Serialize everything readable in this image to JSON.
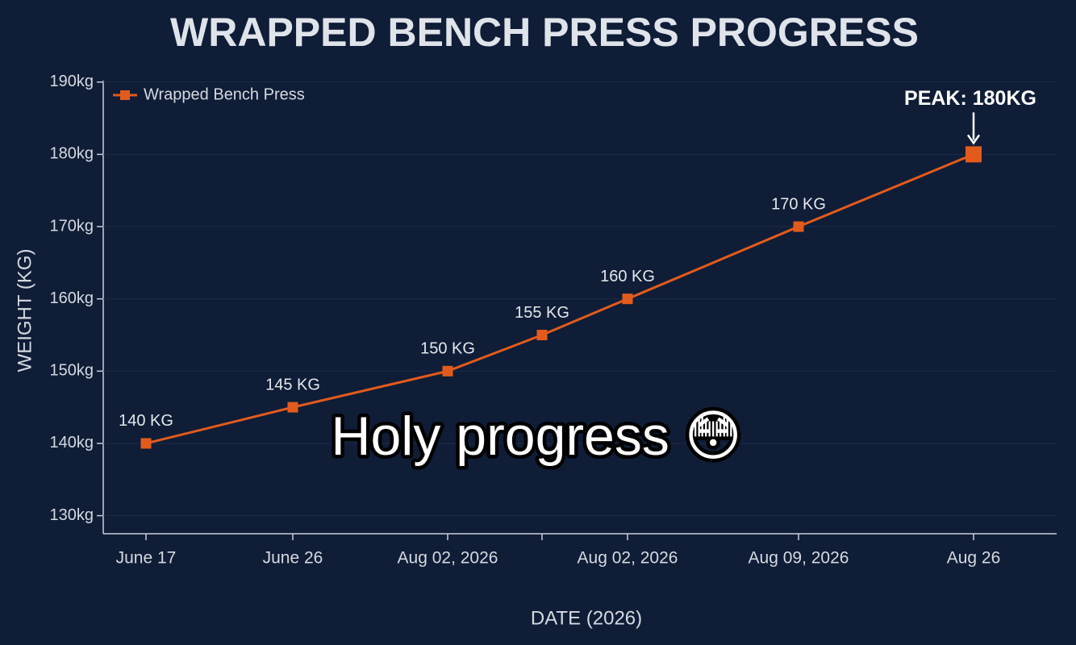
{
  "chart_data": {
    "type": "line",
    "title": "WRAPPED BENCH PRESS PROGRESS",
    "x_label": "DATE (2026)",
    "y_label": "WEIGHT (KG)",
    "categories": [
      "June 17",
      "June 26",
      "Aug 02, 2026",
      null,
      "Aug 02, 2026",
      "Aug 09, 2026",
      "Aug 26"
    ],
    "series": [
      {
        "name": "Wrapped Bench Press",
        "color": "#e35b1c",
        "values": [
          140,
          145,
          150,
          155,
          160,
          170,
          180
        ],
        "value_labels": [
          "140 KG",
          "145 KG",
          "150 KG",
          "155 KG",
          "160 KG",
          "170 KG",
          null
        ]
      }
    ],
    "annotation": "PEAK: 180KG",
    "caption": "Holy progress 😳",
    "ylim": [
      127.5,
      190.2
    ],
    "yticks": [
      {
        "value": 130,
        "label": "130kg"
      },
      {
        "value": 140,
        "label": "140kg"
      },
      {
        "value": 150,
        "label": "150kg"
      },
      {
        "value": 160,
        "label": "160kg"
      },
      {
        "value": 170,
        "label": "170kg"
      },
      {
        "value": 180,
        "label": "180kg"
      },
      {
        "value": 190,
        "label": "190kg"
      }
    ],
    "grid": true,
    "legend": "top-left"
  }
}
